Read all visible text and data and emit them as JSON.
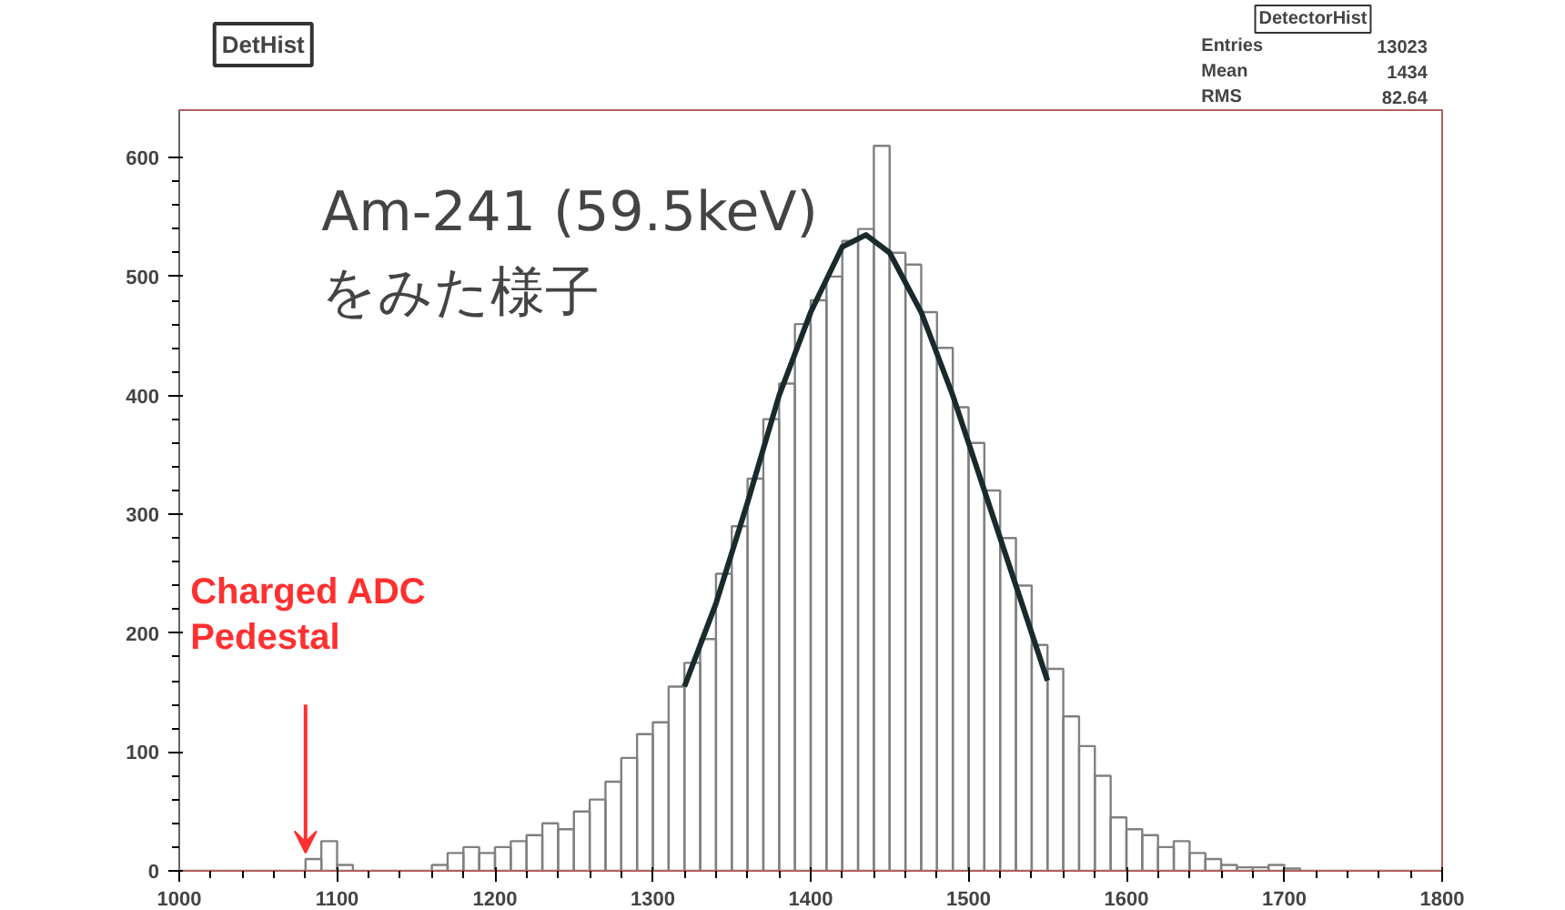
{
  "chart_data": {
    "type": "histogram",
    "title": "DetHist",
    "bins": [
      1000,
      1010,
      1020,
      1030,
      1040,
      1050,
      1060,
      1070,
      1080,
      1090,
      1100,
      1110,
      1120,
      1130,
      1140,
      1150,
      1160,
      1170,
      1180,
      1190,
      1200,
      1210,
      1220,
      1230,
      1240,
      1250,
      1260,
      1270,
      1280,
      1290,
      1300,
      1310,
      1320,
      1330,
      1340,
      1350,
      1360,
      1370,
      1380,
      1390,
      1400,
      1410,
      1420,
      1430,
      1440,
      1450,
      1460,
      1470,
      1480,
      1490,
      1500,
      1510,
      1520,
      1530,
      1540,
      1550,
      1560,
      1570,
      1580,
      1590,
      1600,
      1610,
      1620,
      1630,
      1640,
      1650,
      1660,
      1670,
      1680,
      1690,
      1700,
      1710,
      1720,
      1730,
      1740,
      1750,
      1760,
      1770,
      1780,
      1790,
      1800
    ],
    "values": [
      0,
      0,
      0,
      0,
      0,
      0,
      0,
      0,
      10,
      25,
      5,
      0,
      0,
      0,
      0,
      0,
      5,
      15,
      20,
      15,
      20,
      25,
      30,
      40,
      35,
      50,
      60,
      75,
      95,
      115,
      125,
      155,
      175,
      195,
      250,
      290,
      330,
      380,
      410,
      460,
      480,
      500,
      530,
      540,
      610,
      520,
      510,
      470,
      440,
      390,
      360,
      320,
      280,
      240,
      190,
      170,
      130,
      105,
      80,
      45,
      35,
      30,
      20,
      25,
      15,
      10,
      5,
      3,
      3,
      5,
      2,
      0,
      0,
      0,
      0,
      0,
      0,
      0,
      0,
      0
    ],
    "color": "#808080",
    "series": [
      {
        "type": "line",
        "color": "#1a2a2a",
        "x": [
          1320,
          1340,
          1360,
          1380,
          1400,
          1420,
          1435,
          1450,
          1470,
          1490,
          1510,
          1530,
          1550
        ],
        "values": [
          155,
          225,
          310,
          400,
          470,
          525,
          535,
          520,
          470,
          400,
          320,
          240,
          160
        ]
      }
    ],
    "xlim": [
      1000,
      1800
    ],
    "ylim": [
      0,
      640
    ],
    "xticks": [
      1000,
      1100,
      1200,
      1300,
      1400,
      1500,
      1600,
      1700,
      1800
    ],
    "yticks": [
      0,
      100,
      200,
      300,
      400,
      500,
      600
    ],
    "grid": false,
    "annotations": [
      "Am-241 (59.5keV)\nをみた様子",
      {
        "text": "Charged ADC\nPedestal",
        "x": 1080,
        "y": 15
      },
      "DetectorHist",
      "Entries",
      "13023",
      "Mean",
      "1434",
      "RMS",
      "82.64"
    ]
  }
}
